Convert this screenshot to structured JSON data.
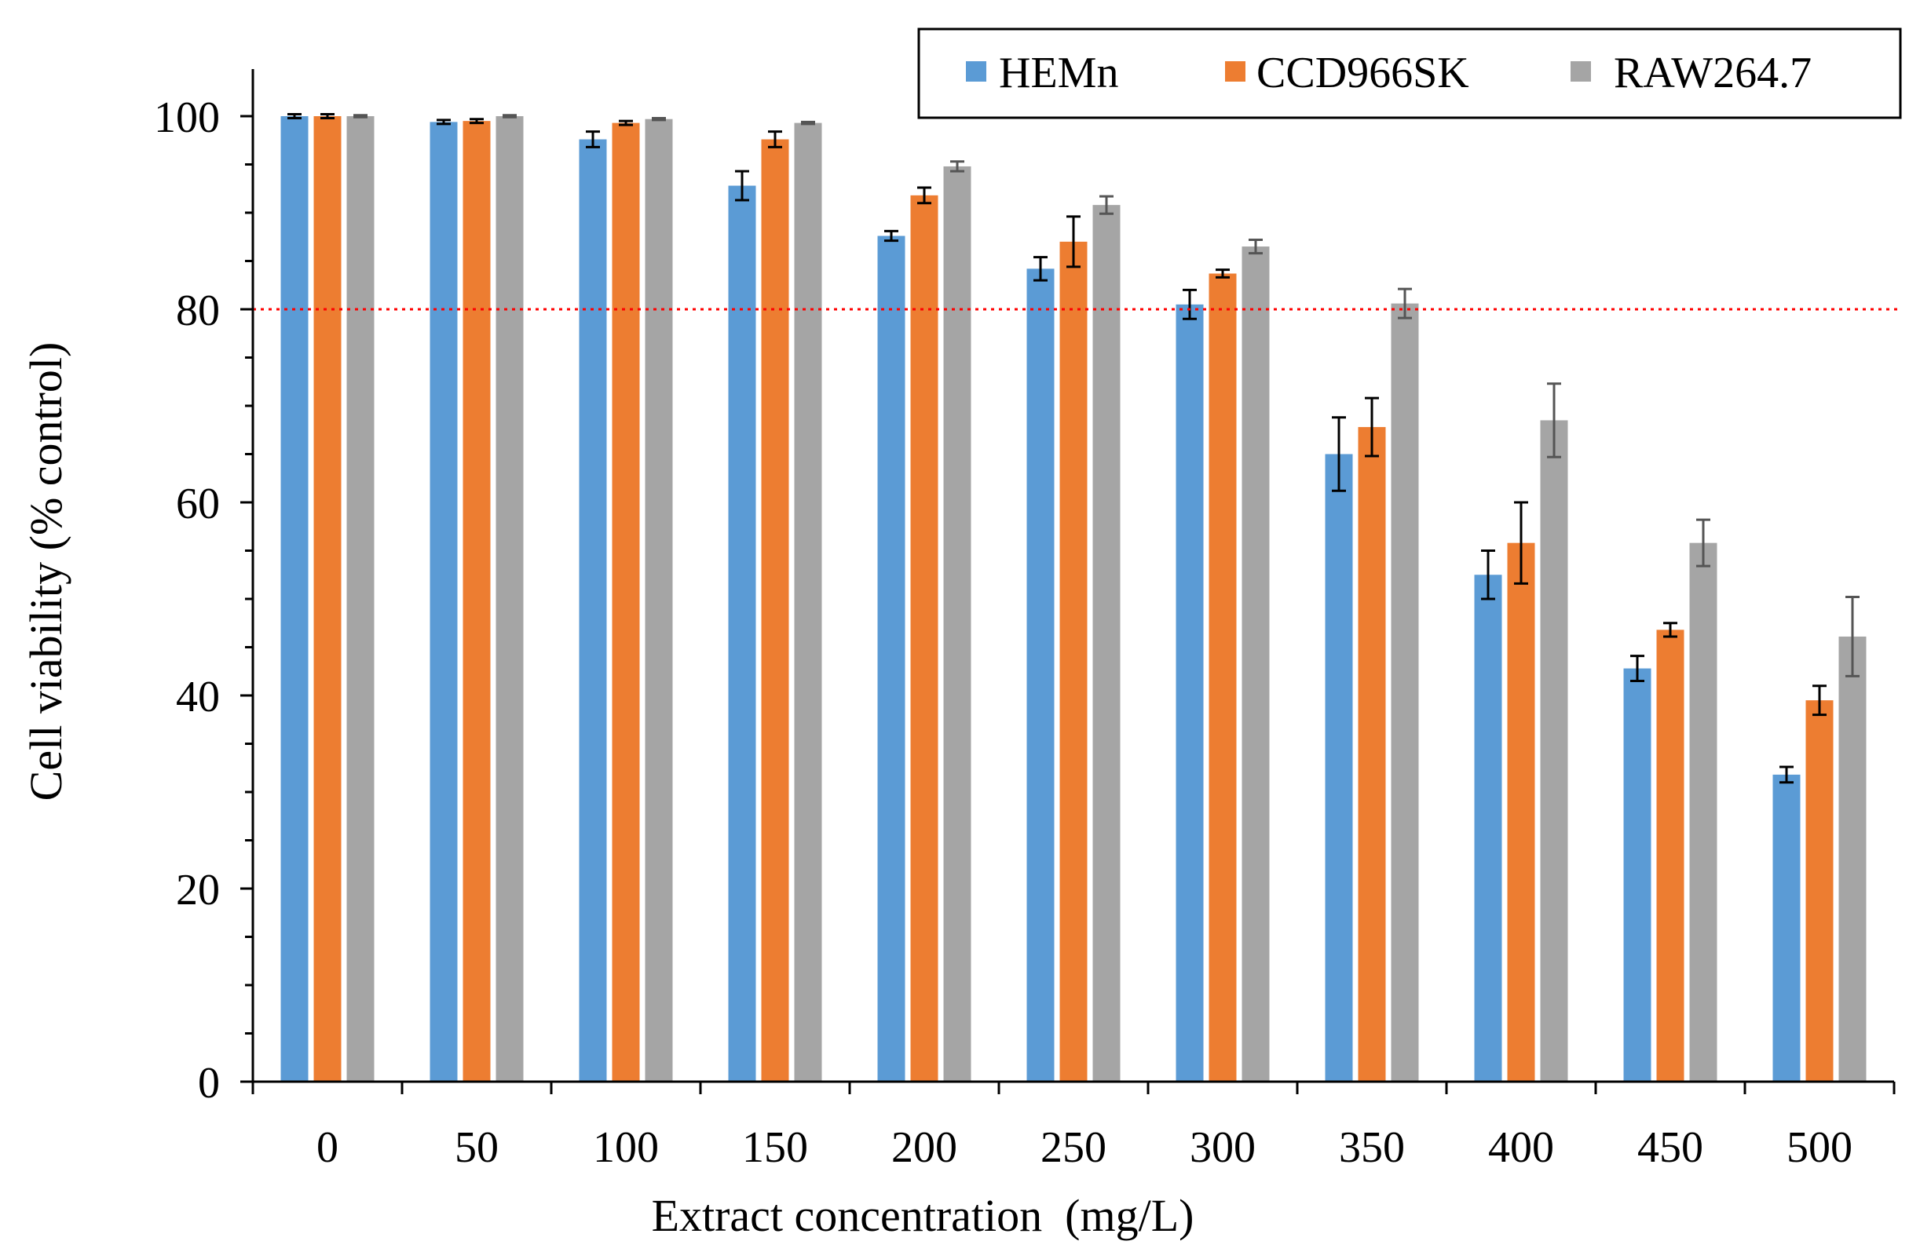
{
  "chart_data": {
    "type": "bar",
    "title": "",
    "xlabel": "Extract concentration  (mg/L)",
    "ylabel": "Cell viability (% control)",
    "ylim": [
      0,
      100
    ],
    "yticks": [
      0,
      20,
      40,
      60,
      80,
      100
    ],
    "grid": false,
    "legend_position": "top-right",
    "categories": [
      "0",
      "50",
      "100",
      "150",
      "200",
      "250",
      "300",
      "350",
      "400",
      "450",
      "500"
    ],
    "reference_line": {
      "y": 80,
      "color": "#ff0000",
      "style": "dotted"
    },
    "series": [
      {
        "name": "HEMn",
        "color": "#5b9bd5",
        "values": [
          100,
          99.4,
          97.6,
          92.8,
          87.6,
          84.2,
          80.5,
          65.0,
          52.5,
          42.8,
          31.8
        ],
        "errors": [
          0.2,
          0.2,
          0.8,
          1.5,
          0.5,
          1.2,
          1.5,
          3.8,
          2.5,
          1.3,
          0.8
        ]
      },
      {
        "name": "CCD966SK",
        "color": "#ed7d31",
        "values": [
          100,
          99.5,
          99.3,
          97.6,
          91.8,
          87.0,
          83.7,
          67.8,
          55.8,
          46.8,
          39.5
        ],
        "errors": [
          0.2,
          0.2,
          0.2,
          0.8,
          0.8,
          2.6,
          0.4,
          3.0,
          4.2,
          0.7,
          1.5
        ]
      },
      {
        "name": "RAW264.7",
        "color": "#a5a5a5",
        "values": [
          100,
          100,
          99.7,
          99.3,
          94.8,
          90.8,
          86.5,
          80.6,
          68.5,
          55.8,
          46.1
        ],
        "errors": [
          0.1,
          0.1,
          0.1,
          0.1,
          0.5,
          0.9,
          0.7,
          1.5,
          3.8,
          2.4,
          4.1
        ]
      }
    ]
  }
}
